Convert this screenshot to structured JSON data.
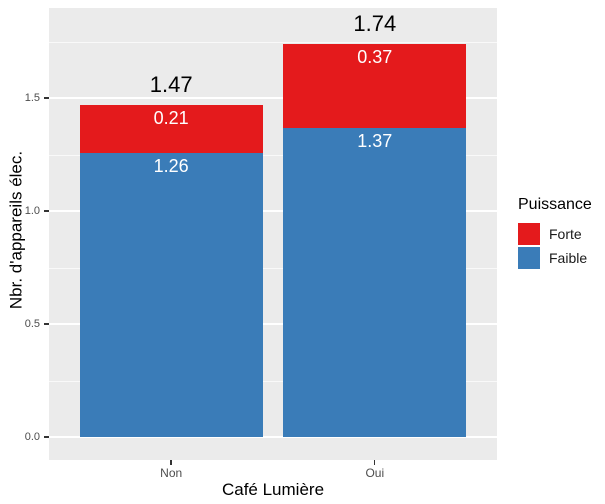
{
  "chart_data": {
    "type": "bar",
    "stacked": true,
    "categories": [
      "Non",
      "Oui"
    ],
    "series": [
      {
        "name": "Faible",
        "color": "#3A7CB8",
        "values": [
          1.26,
          1.37
        ]
      },
      {
        "name": "Forte",
        "color": "#E41A1C",
        "values": [
          0.21,
          0.37
        ]
      }
    ],
    "totals": [
      1.47,
      1.74
    ],
    "xlabel": "Café Lumière",
    "ylabel": "Nbr. d'appareils élec.",
    "ylim": [
      -0.1,
      1.9
    ],
    "yticks_major": [
      0.0,
      0.5,
      1.0,
      1.5
    ],
    "ytick_labels": [
      "0.0",
      "0.5",
      "1.0",
      "1.5"
    ],
    "yticks_minor": [
      0.25,
      0.75,
      1.25,
      1.75
    ],
    "grid": true,
    "legend_position": "right",
    "legend_title": "Puissance",
    "legend_items": [
      {
        "label": "Forte",
        "color": "#E41A1C"
      },
      {
        "label": "Faible",
        "color": "#3A7CB8"
      }
    ],
    "panel_background": "#EBEBEB",
    "gridline_color": "#FFFFFF",
    "segment_label_color": "#FFFFFF",
    "total_label_color": "#000000",
    "tick_text_color": "#4D4D4D",
    "tick_mark_color": "#333333"
  }
}
